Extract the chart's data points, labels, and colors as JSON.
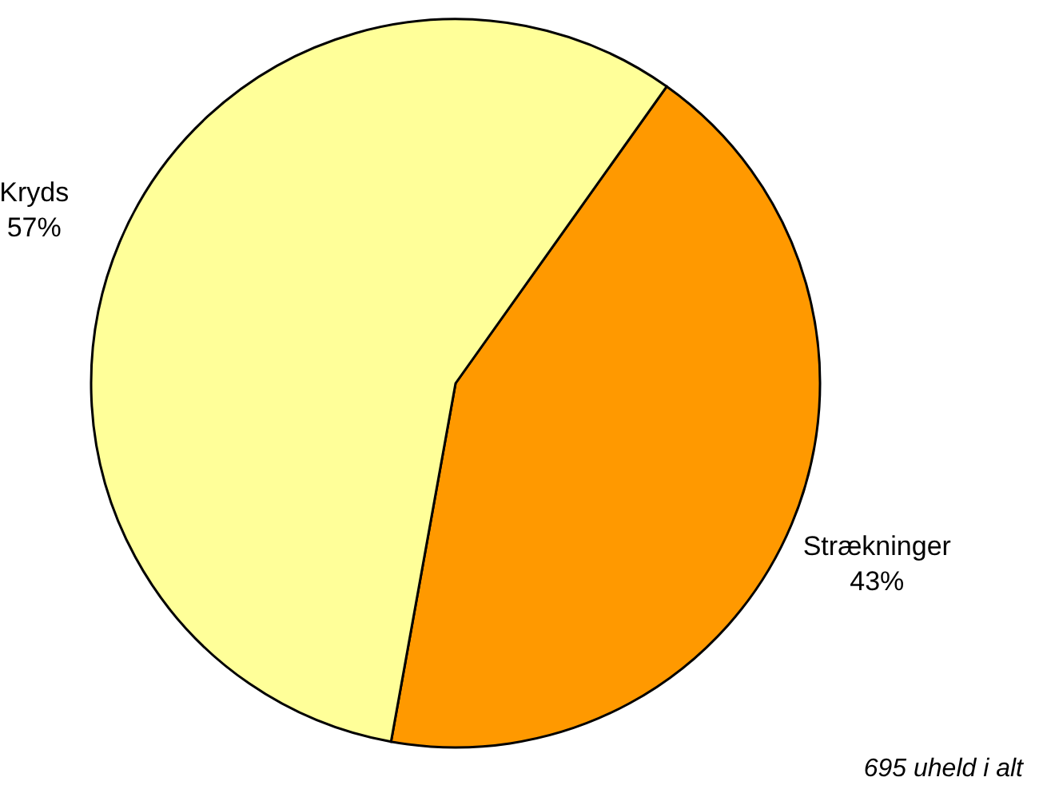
{
  "chart_data": {
    "type": "pie",
    "categories": [
      "Strækninger",
      "Kryds"
    ],
    "values": [
      43,
      57
    ],
    "value_labels": [
      "43%",
      "57%"
    ],
    "colors": [
      "#ff9900",
      "#ffff99"
    ],
    "annotations": [
      "695 uheld i alt"
    ]
  }
}
